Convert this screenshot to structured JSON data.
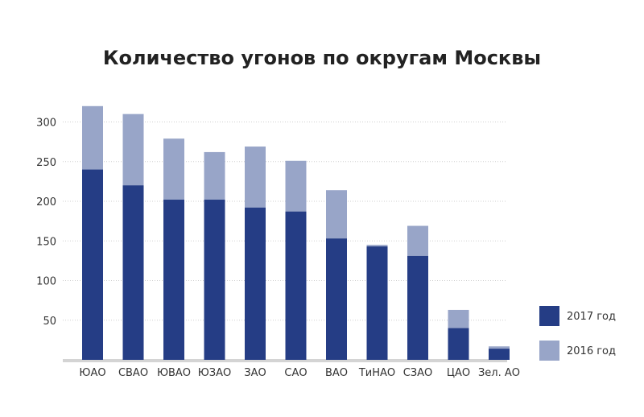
{
  "chart_data": {
    "type": "bar",
    "stacked": false,
    "overlay": true,
    "title": "Количество угонов по округам Москвы",
    "xlabel": "",
    "ylabel": "",
    "ylim": [
      0,
      310
    ],
    "yticks": [
      50,
      100,
      150,
      200,
      250,
      300
    ],
    "grid": true,
    "legend_position": "right",
    "categories": [
      "ЮАО",
      "СВАО",
      "ЮВАО",
      "ЮЗАО",
      "ЗАО",
      "САО",
      "ВАО",
      "ТиНАО",
      "СЗАО",
      "ЦАО",
      "Зел. АО"
    ],
    "series": [
      {
        "name": "2017 год",
        "color": "#253d85",
        "values": [
          240,
          220,
          202,
          202,
          192,
          187,
          153,
          143,
          131,
          40,
          14
        ]
      },
      {
        "name": "2016 год",
        "color": "#98a5c8",
        "values": [
          320,
          310,
          279,
          262,
          269,
          251,
          214,
          145,
          169,
          63,
          17
        ]
      }
    ]
  }
}
